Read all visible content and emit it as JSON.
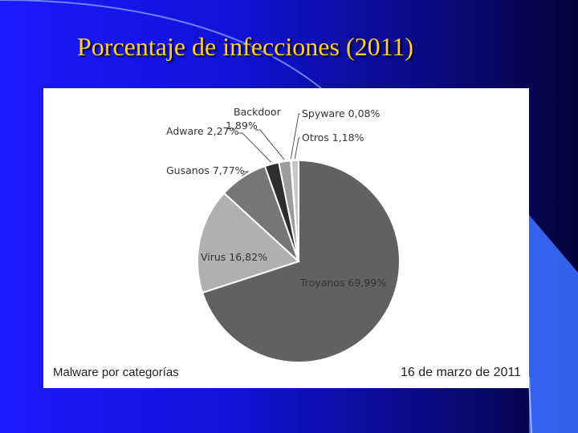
{
  "slide": {
    "title": "Porcentaje de infecciones (2011)"
  },
  "chart_data": {
    "type": "pie",
    "categories": [
      "Troyanos",
      "Virus",
      "Gusanos",
      "Adware",
      "Backdoor",
      "Spyware",
      "Otros"
    ],
    "values": [
      69.99,
      16.82,
      7.77,
      2.27,
      1.89,
      0.08,
      1.18
    ],
    "labels": [
      "Troyanos 69,99%",
      "Virus 16,82%",
      "Gusanos 7,77%",
      "Adware 2,27%",
      "Backdoor 1,89%",
      "Spyware 0,08%",
      "Otros 1,18%"
    ],
    "colors": [
      "#616161",
      "#b0b0b0",
      "#767676",
      "#2e2e2e",
      "#9c9c9c",
      "#5a5a5a",
      "#c8c8c8"
    ],
    "footer_left": "Malware por categorías",
    "footer_right": "16 de marzo de 2011"
  }
}
